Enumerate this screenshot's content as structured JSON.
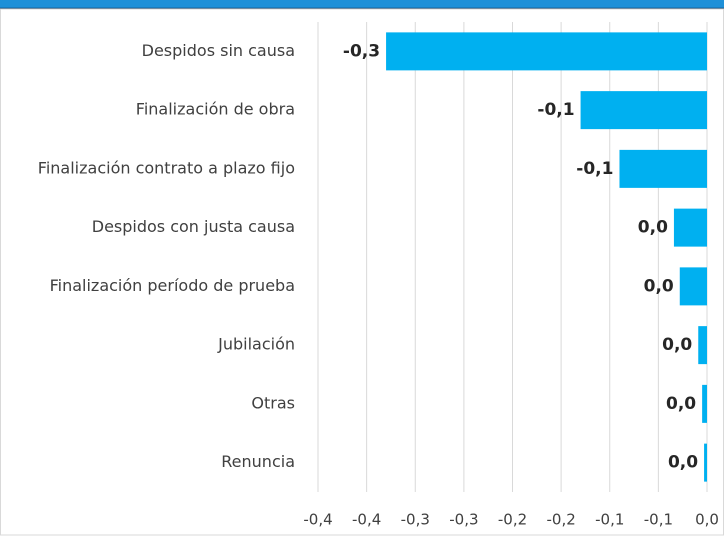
{
  "chart_data": {
    "type": "bar",
    "orientation": "horizontal",
    "categories": [
      "Despidos sin causa",
      "Finalización de obra",
      "Finalización contrato a plazo fijo",
      "Despidos con justa causa",
      "Finalización período de prueba",
      "Jubilación",
      "Otras",
      "Renuncia"
    ],
    "values": [
      -0.33,
      -0.13,
      -0.09,
      -0.034,
      -0.028,
      -0.009,
      -0.005,
      -0.003
    ],
    "value_labels": [
      "-0,3",
      "-0,1",
      "-0,1",
      "0,0",
      "0,0",
      "0,0",
      "0,0",
      "0,0"
    ],
    "color": "#00b0f0",
    "xlim": [
      -0.4,
      0
    ],
    "xticks": [
      {
        "value": -0.4,
        "label": "-0,4"
      },
      {
        "value": -0.35,
        "label": "-0,4"
      },
      {
        "value": -0.3,
        "label": "-0,3"
      },
      {
        "value": -0.25,
        "label": "-0,3"
      },
      {
        "value": -0.2,
        "label": "-0,2"
      },
      {
        "value": -0.15,
        "label": "-0,2"
      },
      {
        "value": -0.1,
        "label": "-0,1"
      },
      {
        "value": -0.05,
        "label": "-0,1"
      },
      {
        "value": 0,
        "label": "0,0"
      }
    ],
    "grid": true
  }
}
